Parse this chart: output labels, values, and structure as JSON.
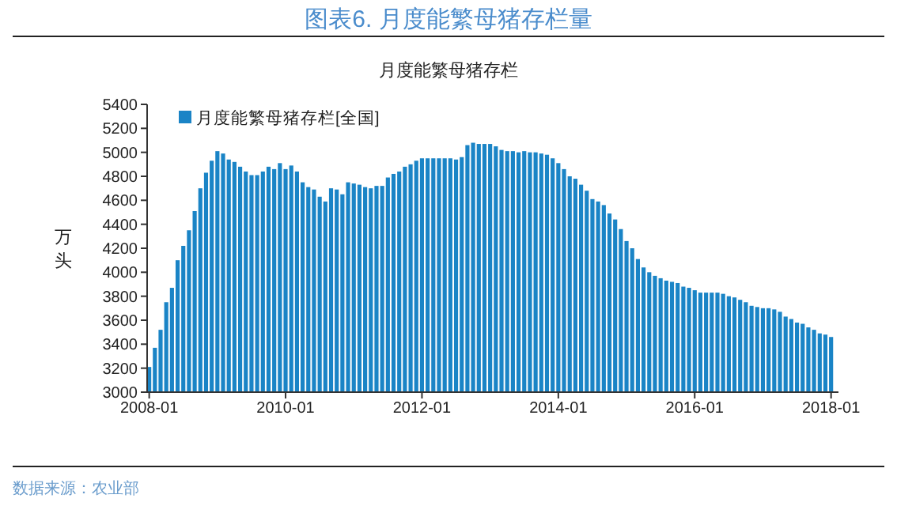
{
  "chart_data": {
    "type": "bar",
    "title": "图表6.  月度能繁母猪存栏量",
    "subtitle": "月度能繁母猪存栏",
    "ylabel": "万头",
    "legend": "top left",
    "grid": false,
    "x": [
      "2008-01",
      "2008-02",
      "2008-03",
      "2008-04",
      "2008-05",
      "2008-06",
      "2008-07",
      "2008-08",
      "2008-09",
      "2008-10",
      "2008-11",
      "2008-12",
      "2009-01",
      "2009-02",
      "2009-03",
      "2009-04",
      "2009-05",
      "2009-06",
      "2009-07",
      "2009-08",
      "2009-09",
      "2009-10",
      "2009-11",
      "2009-12",
      "2010-01",
      "2010-02",
      "2010-03",
      "2010-04",
      "2010-05",
      "2010-06",
      "2010-07",
      "2010-08",
      "2010-09",
      "2010-10",
      "2010-11",
      "2010-12",
      "2011-01",
      "2011-02",
      "2011-03",
      "2011-04",
      "2011-05",
      "2011-06",
      "2011-07",
      "2011-08",
      "2011-09",
      "2011-10",
      "2011-11",
      "2011-12",
      "2012-01",
      "2012-02",
      "2012-03",
      "2012-04",
      "2012-05",
      "2012-06",
      "2012-07",
      "2012-08",
      "2012-09",
      "2012-10",
      "2012-11",
      "2012-12",
      "2013-01",
      "2013-02",
      "2013-03",
      "2013-04",
      "2013-05",
      "2013-06",
      "2013-07",
      "2013-08",
      "2013-09",
      "2013-10",
      "2013-11",
      "2013-12",
      "2014-01",
      "2014-02",
      "2014-03",
      "2014-04",
      "2014-05",
      "2014-06",
      "2014-07",
      "2014-08",
      "2014-09",
      "2014-10",
      "2014-11",
      "2014-12",
      "2015-01",
      "2015-02",
      "2015-03",
      "2015-04",
      "2015-05",
      "2015-06",
      "2015-07",
      "2015-08",
      "2015-09",
      "2015-10",
      "2015-11",
      "2015-12",
      "2016-01",
      "2016-02",
      "2016-03",
      "2016-04",
      "2016-05",
      "2016-06",
      "2016-07",
      "2016-08",
      "2016-09",
      "2016-10",
      "2016-11",
      "2016-12",
      "2017-01",
      "2017-02",
      "2017-03",
      "2017-04",
      "2017-05",
      "2017-06",
      "2017-07",
      "2017-08",
      "2017-09",
      "2017-10",
      "2017-11",
      "2017-12",
      "2018-01"
    ],
    "series": [
      {
        "name": "月度能繁母猪存栏[全国]",
        "color": "#1a84c6",
        "values": [
          3210,
          3370,
          3520,
          3750,
          3870,
          4100,
          4220,
          4350,
          4510,
          4700,
          4830,
          4930,
          5010,
          4990,
          4940,
          4920,
          4880,
          4840,
          4810,
          4810,
          4840,
          4880,
          4860,
          4910,
          4860,
          4890,
          4840,
          4750,
          4710,
          4690,
          4630,
          4590,
          4700,
          4690,
          4650,
          4750,
          4740,
          4730,
          4710,
          4700,
          4720,
          4720,
          4790,
          4820,
          4840,
          4880,
          4900,
          4930,
          4950,
          4950,
          4950,
          4950,
          4950,
          4950,
          4940,
          4960,
          5060,
          5080,
          5070,
          5070,
          5070,
          5050,
          5020,
          5010,
          5010,
          5000,
          5010,
          5000,
          5000,
          4990,
          4980,
          4950,
          4910,
          4860,
          4800,
          4780,
          4730,
          4680,
          4610,
          4590,
          4560,
          4490,
          4440,
          4360,
          4260,
          4200,
          4110,
          4040,
          4000,
          3970,
          3950,
          3930,
          3920,
          3910,
          3880,
          3870,
          3850,
          3830,
          3830,
          3830,
          3830,
          3820,
          3800,
          3790,
          3770,
          3750,
          3720,
          3710,
          3700,
          3700,
          3690,
          3670,
          3630,
          3610,
          3580,
          3570,
          3540,
          3520,
          3490,
          3480,
          3460
        ]
      }
    ],
    "xlim": [
      "2007-12-20",
      "2018-02-10"
    ],
    "xticks": [
      "2008-01",
      "2010-01",
      "2012-01",
      "2014-01",
      "2016-01",
      "2018-01"
    ],
    "ylim": [
      3000,
      5400
    ],
    "yticks": [
      3000,
      3200,
      3400,
      3600,
      3800,
      4000,
      4200,
      4400,
      4600,
      4800,
      5000,
      5200,
      5400
    ],
    "annotations": [
      "数据来源：农业部"
    ]
  }
}
